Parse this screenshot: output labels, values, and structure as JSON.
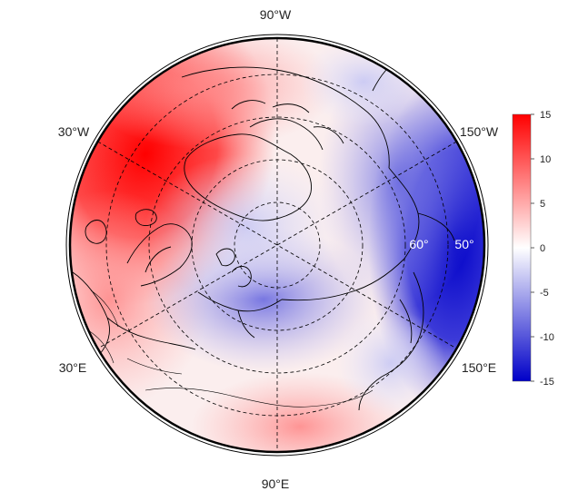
{
  "map": {
    "projection": "north-polar-stereographic",
    "coastline_color": "#000000",
    "graticule_style": "dashed",
    "longitude_labels": {
      "top": "90°W",
      "upper_left": "30°W",
      "upper_right": "150°W",
      "lower_left": "30°E",
      "lower_right": "150°E",
      "bottom": "90°E"
    },
    "latitude_labels": [
      "60°",
      "50°"
    ],
    "anomaly_pattern": [
      {
        "region": "North Atlantic / Greenland Sea",
        "sign": "positive",
        "approx_value": 14
      },
      {
        "region": "Europe / Western Russia",
        "sign": "positive",
        "approx_value": 5
      },
      {
        "region": "Central Arctic / Siberia",
        "sign": "negative",
        "approx_value": -6
      },
      {
        "region": "North Pacific / Bering Sea",
        "sign": "negative",
        "approx_value": -14
      },
      {
        "region": "Central Asia",
        "sign": "positive",
        "approx_value": 6
      }
    ]
  },
  "colorbar": {
    "min": -15,
    "max": 15,
    "ticks": [
      "15",
      "10",
      "5",
      "0",
      "-5",
      "-10",
      "-15"
    ],
    "color_low": "#0000c8",
    "color_mid": "#ffffff",
    "color_high": "#ff0000"
  }
}
